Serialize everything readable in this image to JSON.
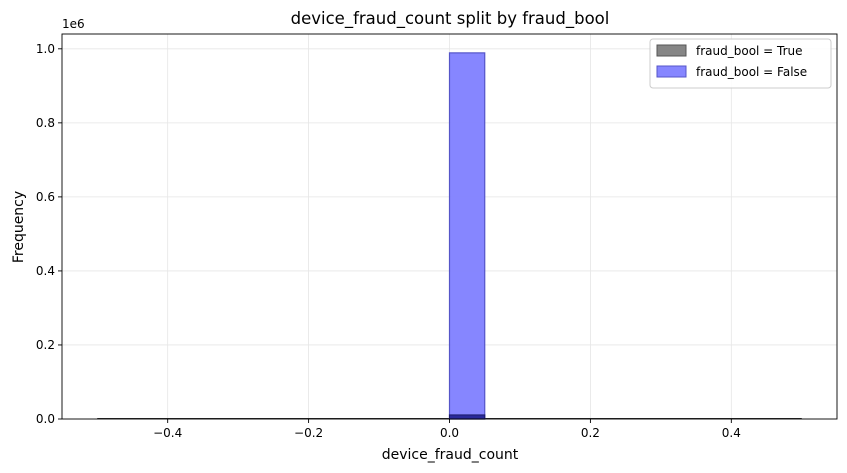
{
  "chart_data": {
    "type": "bar",
    "title": "device_fraud_count split by fraud_bool",
    "xlabel": "device_fraud_count",
    "ylabel": "Frequency",
    "y_offset_label": "1e6",
    "xlim": [
      -0.55,
      0.55
    ],
    "ylim": [
      0,
      1.04
    ],
    "x_ticks": [
      -0.4,
      -0.2,
      0.0,
      0.2,
      0.4
    ],
    "x_tick_labels": [
      "−0.4",
      "−0.2",
      "0.0",
      "0.2",
      "0.4"
    ],
    "y_ticks": [
      0.0,
      0.2,
      0.4,
      0.6,
      0.8,
      1.0
    ],
    "y_tick_labels": [
      "0.0",
      "0.2",
      "0.4",
      "0.6",
      "0.8",
      "1.0"
    ],
    "grid": true,
    "legend_position": "top-right",
    "bins": {
      "start": -0.5,
      "end": 0.5,
      "count": 20
    },
    "series": [
      {
        "name": "fraud_bool = True",
        "color": "#808080",
        "edge": "#555555",
        "bin_start": 0.0,
        "bin_end": 0.05,
        "value": 0.011
      },
      {
        "name": "fraud_bool = False",
        "color": "#7f7fff",
        "edge": "#5555c8",
        "bin_start": 0.0,
        "bin_end": 0.05,
        "value": 0.989
      }
    ]
  }
}
